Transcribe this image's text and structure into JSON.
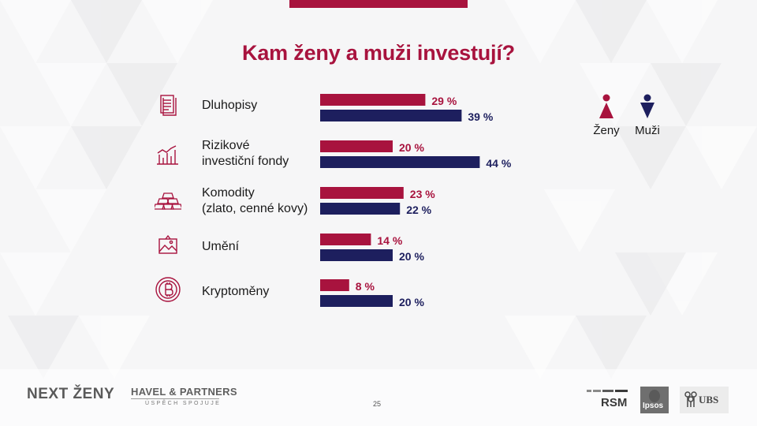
{
  "title": "Kam ženy a muži investují?",
  "colors": {
    "women": "#a8133e",
    "men": "#1d1f5e",
    "icon": "#a8133e"
  },
  "legend": {
    "women": {
      "label": "Ženy",
      "icon": "woman-icon"
    },
    "men": {
      "label": "Muži",
      "icon": "man-icon"
    }
  },
  "categories": [
    {
      "label": "Dluhopisy",
      "icon": "bond-document-icon"
    },
    {
      "label": "Rizikové\ninvestiční fondy",
      "icon": "rising-chart-icon"
    },
    {
      "label": "Komodity\n(zlato, cenné kovy)",
      "icon": "gold-bars-icon"
    },
    {
      "label": "Umění",
      "icon": "painting-icon"
    },
    {
      "label": "Kryptoměny",
      "icon": "bitcoin-icon"
    }
  ],
  "chart_data": {
    "type": "bar",
    "orientation": "horizontal",
    "title": "Kam ženy a muži investují?",
    "categories": [
      "Dluhopisy",
      "Rizikové investiční fondy",
      "Komodity (zlato, cenné kovy)",
      "Umění",
      "Kryptoměny"
    ],
    "series": [
      {
        "name": "Ženy",
        "values": [
          29,
          20,
          23,
          14,
          8
        ]
      },
      {
        "name": "Muži",
        "values": [
          39,
          44,
          22,
          20,
          20
        ]
      }
    ],
    "value_suffix": " %",
    "legend_position": "top-right"
  },
  "footer": {
    "brand": "NEXT ŽENY",
    "partner": "HAVEL & PARTNERS",
    "partner_tagline": "ÚSPĚCH SPOJUJE",
    "page_number": "25",
    "logos": [
      "RSM",
      "Ipsos",
      "UBS"
    ]
  }
}
